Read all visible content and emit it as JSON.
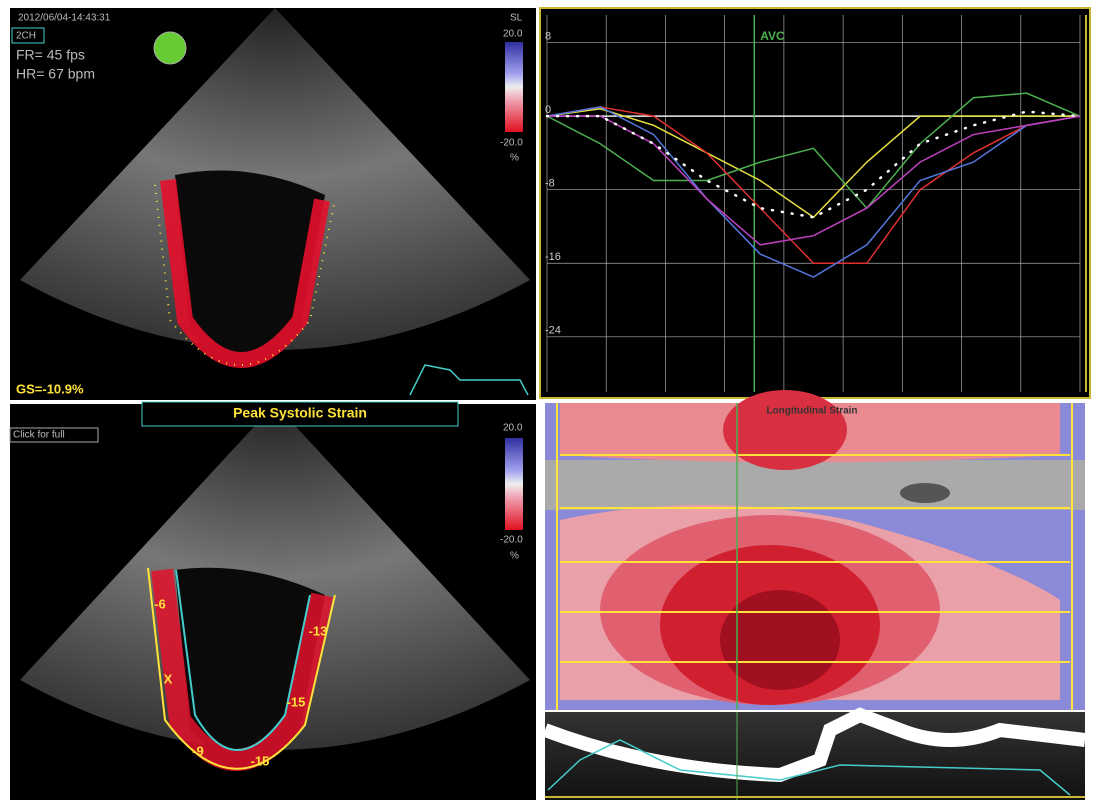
{
  "top_view": {
    "timestamp": "2012/06/04-14:43:31",
    "view": "2CH",
    "frame_rate": "FR= 45 fps",
    "heart_rate": "HR= 67 bpm",
    "scale_title": "SL",
    "scale_max": "20.0",
    "scale_min": "-20.0",
    "scale_unit": "%",
    "global_strain": "GS=-10.9%"
  },
  "bottom_view": {
    "title": "Peak Systolic Strain",
    "button": "Click for full",
    "scale_max": "20.0",
    "scale_min": "-20.0",
    "scale_unit": "%",
    "segments": [
      "-6",
      "X",
      "-9",
      "-15",
      "-15",
      "-13"
    ]
  },
  "strain_map": {
    "title": "Longitudinal Strain"
  },
  "chart_data": {
    "type": "line",
    "annotation": "AVC",
    "categories": [
      null,
      null,
      null,
      null,
      null,
      null,
      null,
      null,
      null,
      null,
      null
    ],
    "ylim": [
      -30,
      11
    ],
    "yticks": [
      8,
      0,
      -8,
      -16,
      -24
    ],
    "grid": true,
    "series": [
      {
        "color": "#e6e040",
        "values": [
          0,
          0.8,
          -1,
          -4,
          -7,
          -11,
          -5,
          0,
          0,
          0,
          0
        ]
      },
      {
        "color": "#4caf50",
        "values": [
          0,
          -3,
          -7,
          -7,
          -5,
          -3.5,
          -10,
          -3,
          2,
          2.5,
          0
        ]
      },
      {
        "color": "#e03030",
        "values": [
          0,
          1,
          0,
          -4,
          -10,
          -16,
          -16,
          -8,
          -4,
          -1,
          0
        ]
      },
      {
        "color": "#5577dd",
        "values": [
          0,
          1,
          -2,
          -9,
          -15,
          -17.5,
          -14,
          -7,
          -5,
          -1,
          0
        ]
      },
      {
        "color": "#c040c0",
        "values": [
          0,
          0,
          -3,
          -9,
          -14,
          -13,
          -10,
          -5,
          -2,
          -1,
          0
        ]
      },
      {
        "color": "#ffffff",
        "dashed": true,
        "values": [
          0,
          0,
          -3,
          -7,
          -10,
          -11,
          -8,
          -3,
          -1,
          0.5,
          0
        ]
      }
    ]
  }
}
